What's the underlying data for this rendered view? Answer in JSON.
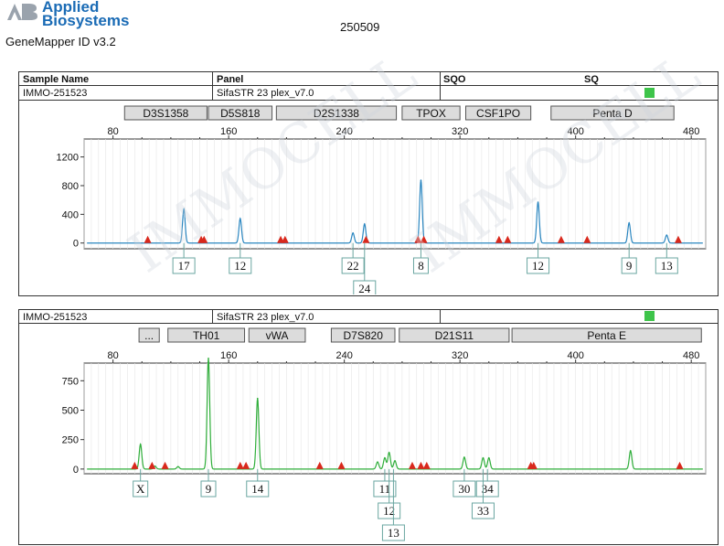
{
  "header": {
    "brand_line1": "Applied",
    "brand_line2": "Biosystems",
    "app_name": "GeneMapper ID v3.2",
    "report_id": "250509"
  },
  "colors": {
    "blue_trace": "#2a86c0",
    "green_trace": "#2fae3a",
    "peak_marker": "#d9281c",
    "status_green": "#3ec44a",
    "watermark": "#cfd6de"
  },
  "table": {
    "col_sample": "Sample Name",
    "col_panel": "Panel",
    "col_sqo": "SQO",
    "col_sq": "SQ",
    "sample_name": "IMMO-251523",
    "panel": "SifaSTR 23 plex_v7.0"
  },
  "watermark_text": "IMMOCELL",
  "chart_data": [
    {
      "type": "line",
      "dye": "blue",
      "sample": "IMMO-251523",
      "panel": "SifaSTR 23 plex_v7.0",
      "x_ticks": [
        80,
        160,
        240,
        320,
        400,
        480
      ],
      "xlim": [
        60,
        490
      ],
      "y_ticks": [
        0,
        400,
        800,
        1200
      ],
      "ylim": [
        -80,
        1450
      ],
      "markers": [
        {
          "label": "D3S1358",
          "range": [
            88,
            145
          ]
        },
        {
          "label": "D5S818",
          "range": [
            146,
            190
          ]
        },
        {
          "label": "D2S1338",
          "range": [
            193,
            276
          ]
        },
        {
          "label": "TPOX",
          "range": [
            280,
            320
          ]
        },
        {
          "label": "CSF1PO",
          "range": [
            324,
            369
          ]
        },
        {
          "label": "Penta D",
          "range": [
            383,
            468
          ]
        }
      ],
      "peaks": [
        {
          "x": 129,
          "y": 470
        },
        {
          "x": 168,
          "y": 340
        },
        {
          "x": 246,
          "y": 140
        },
        {
          "x": 254,
          "y": 265
        },
        {
          "x": 293,
          "y": 875
        },
        {
          "x": 374,
          "y": 570
        },
        {
          "x": 437,
          "y": 280
        },
        {
          "x": 463,
          "y": 110
        }
      ],
      "ladder_markers": [
        104,
        141,
        143,
        196,
        199,
        255,
        291,
        295,
        347,
        353,
        390,
        408,
        471
      ],
      "alleles": [
        {
          "label": "17",
          "x": 129,
          "row": 0
        },
        {
          "label": "12",
          "x": 168,
          "row": 0
        },
        {
          "label": "22",
          "x": 246,
          "row": 0
        },
        {
          "label": "24",
          "x": 254,
          "row": 1
        },
        {
          "label": "8",
          "x": 293,
          "row": 0
        },
        {
          "label": "12",
          "x": 374,
          "row": 0
        },
        {
          "label": "9",
          "x": 437,
          "row": 0
        },
        {
          "label": "13",
          "x": 463,
          "row": 0
        }
      ]
    },
    {
      "type": "line",
      "dye": "green",
      "sample": "IMMO-251523",
      "panel": "SifaSTR 23 plex_v7.0",
      "x_ticks": [
        80,
        160,
        240,
        320,
        400,
        480
      ],
      "xlim": [
        60,
        490
      ],
      "y_ticks": [
        0,
        250,
        500,
        750
      ],
      "ylim": [
        -40,
        900
      ],
      "markers": [
        {
          "label": "...",
          "range": [
            98,
            112
          ]
        },
        {
          "label": "TH01",
          "range": [
            118,
            171
          ]
        },
        {
          "label": "vWA",
          "range": [
            174,
            213
          ]
        },
        {
          "label": "D7S820",
          "range": [
            231,
            275
          ]
        },
        {
          "label": "D21S11",
          "range": [
            278,
            354
          ]
        },
        {
          "label": "Penta E",
          "range": [
            356,
            487
          ]
        }
      ],
      "peaks": [
        {
          "x": 99,
          "y": 210
        },
        {
          "x": 109,
          "y": 25
        },
        {
          "x": 125,
          "y": 20
        },
        {
          "x": 146,
          "y": 940
        },
        {
          "x": 180,
          "y": 600
        },
        {
          "x": 263,
          "y": 60
        },
        {
          "x": 268,
          "y": 95
        },
        {
          "x": 271,
          "y": 140
        },
        {
          "x": 275,
          "y": 70
        },
        {
          "x": 323,
          "y": 100
        },
        {
          "x": 336,
          "y": 95
        },
        {
          "x": 340,
          "y": 95
        },
        {
          "x": 438,
          "y": 155
        }
      ],
      "ladder_markers": [
        95,
        107,
        116,
        168,
        172,
        223,
        238,
        287,
        293,
        297,
        369,
        371,
        472
      ],
      "alleles": [
        {
          "label": "X",
          "x": 99,
          "row": 0
        },
        {
          "label": "9",
          "x": 146,
          "row": 0
        },
        {
          "label": "14",
          "x": 180,
          "row": 0
        },
        {
          "label": "11",
          "x": 268,
          "row": 0
        },
        {
          "label": "12",
          "x": 271,
          "row": 1
        },
        {
          "label": "13",
          "x": 274,
          "row": 2
        },
        {
          "label": "30",
          "x": 323,
          "row": 0
        },
        {
          "label": "34",
          "x": 339,
          "row": 0
        },
        {
          "label": "33",
          "x": 336,
          "row": 1
        }
      ]
    }
  ]
}
